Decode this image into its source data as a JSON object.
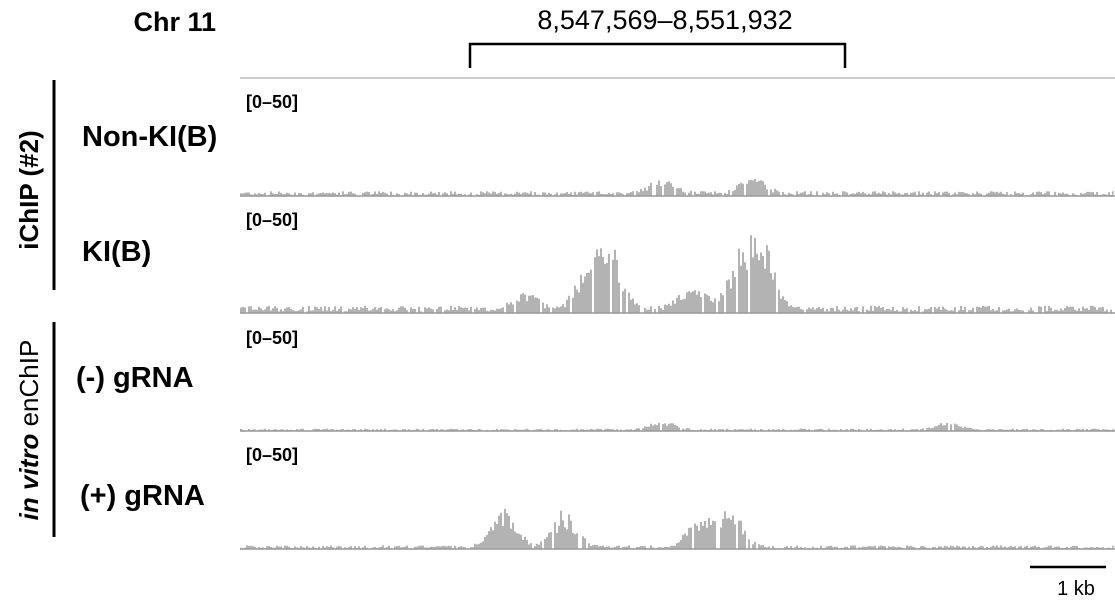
{
  "chromosome_label": "Chr 11",
  "region_label": "8,547,569–8,551,932",
  "groups": [
    {
      "label": "iChIP (#2)"
    },
    {
      "label_italic": "in vitro",
      "label_rest": " enChIP"
    }
  ],
  "scale_bar": {
    "label": "1 kb"
  },
  "colors": {
    "signal": "#b3b3b3",
    "baseline": "#999999",
    "text": "#000000"
  },
  "chart_data": {
    "type": "area",
    "x": {
      "unit": "kb (approx.)",
      "range": [
        0,
        5.8
      ]
    },
    "tracks": [
      {
        "name": "Non-KI(B)",
        "range_label": "[0–50]",
        "ylim": [
          0,
          50
        ],
        "background_level": 2,
        "peaks": [
          {
            "x": 2.8,
            "height": 8
          },
          {
            "x": 3.4,
            "height": 9
          }
        ]
      },
      {
        "name": "KI(B)",
        "range_label": "[0–50]",
        "ylim": [
          0,
          50
        ],
        "background_level": 3,
        "peaks": [
          {
            "x": 1.9,
            "height": 8
          },
          {
            "x": 2.3,
            "height": 22
          },
          {
            "x": 2.45,
            "height": 38
          },
          {
            "x": 3.0,
            "height": 14
          },
          {
            "x": 3.3,
            "height": 24
          },
          {
            "x": 3.45,
            "height": 44
          }
        ]
      },
      {
        "name": "(-) gRNA",
        "range_label": "[0–50]",
        "ylim": [
          0,
          50
        ],
        "background_level": 1,
        "peaks": [
          {
            "x": 2.8,
            "height": 5
          },
          {
            "x": 4.7,
            "height": 4
          }
        ]
      },
      {
        "name": "(+) gRNA",
        "range_label": "[0–50]",
        "ylim": [
          0,
          50
        ],
        "background_level": 1.5,
        "peaks": [
          {
            "x": 1.75,
            "height": 22
          },
          {
            "x": 2.15,
            "height": 20
          },
          {
            "x": 3.05,
            "height": 16
          },
          {
            "x": 3.25,
            "height": 22
          }
        ]
      }
    ]
  }
}
